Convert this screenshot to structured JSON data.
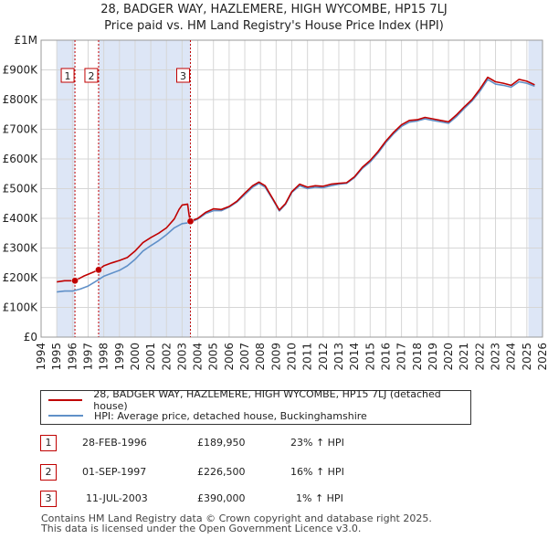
{
  "header": {
    "title_line1": "28, BADGER WAY, HAZLEMERE, HIGH WYCOMBE, HP15 7LJ",
    "title_line2": "Price paid vs. HM Land Registry's House Price Index (HPI)"
  },
  "colors": {
    "price_line": "#c00000",
    "hpi_line": "#6090c8",
    "shade": "#dde6f6",
    "grid": "#d6d6d6",
    "marker_border": "#c00000"
  },
  "chart_data": {
    "type": "line",
    "title": "28, BADGER WAY, HAZLEMERE, HIGH WYCOMBE, HP15 7LJ",
    "subtitle": "Price paid vs. HM Land Registry's House Price Index (HPI)",
    "xlim": [
      1994,
      2026
    ],
    "ylim": [
      0,
      1000000
    ],
    "x_ticks": [
      1994,
      1995,
      1996,
      1997,
      1998,
      1999,
      2000,
      2001,
      2002,
      2003,
      2004,
      2005,
      2006,
      2007,
      2008,
      2009,
      2010,
      2011,
      2012,
      2013,
      2014,
      2015,
      2016,
      2017,
      2018,
      2019,
      2020,
      2021,
      2022,
      2023,
      2024,
      2025,
      2026
    ],
    "y_ticks": [
      {
        "value": 0,
        "label": "£0"
      },
      {
        "value": 100000,
        "label": "£100K"
      },
      {
        "value": 200000,
        "label": "£200K"
      },
      {
        "value": 300000,
        "label": "£300K"
      },
      {
        "value": 400000,
        "label": "£400K"
      },
      {
        "value": 500000,
        "label": "£500K"
      },
      {
        "value": 600000,
        "label": "£600K"
      },
      {
        "value": 700000,
        "label": "£700K"
      },
      {
        "value": 800000,
        "label": "£800K"
      },
      {
        "value": 900000,
        "label": "£900K"
      },
      {
        "value": 1000000,
        "label": "£1M"
      }
    ],
    "grid": true,
    "shaded_ranges": [
      [
        1995.0,
        1996.16
      ],
      [
        1997.67,
        2003.53
      ],
      [
        2025.1,
        2026.0
      ]
    ],
    "series": [
      {
        "name": "28, BADGER WAY, HAZLEMERE, HIGH WYCOMBE, HP15 7LJ (detached house)",
        "color": "#c00000",
        "points": [
          [
            1995.0,
            186000
          ],
          [
            1995.5,
            190000
          ],
          [
            1996.16,
            189950
          ],
          [
            1996.7,
            205000
          ],
          [
            1997.3,
            218000
          ],
          [
            1997.67,
            226500
          ],
          [
            1998.0,
            240000
          ],
          [
            1998.5,
            250000
          ],
          [
            1999.0,
            258000
          ],
          [
            1999.5,
            268000
          ],
          [
            2000.0,
            290000
          ],
          [
            2000.5,
            318000
          ],
          [
            2001.0,
            335000
          ],
          [
            2001.5,
            350000
          ],
          [
            2002.0,
            368000
          ],
          [
            2002.5,
            398000
          ],
          [
            2002.8,
            430000
          ],
          [
            2003.0,
            445000
          ],
          [
            2003.35,
            448000
          ],
          [
            2003.45,
            410000
          ],
          [
            2003.53,
            390000
          ],
          [
            2004.0,
            400000
          ],
          [
            2004.5,
            420000
          ],
          [
            2005.0,
            432000
          ],
          [
            2005.5,
            430000
          ],
          [
            2006.0,
            440000
          ],
          [
            2006.5,
            458000
          ],
          [
            2007.0,
            485000
          ],
          [
            2007.5,
            510000
          ],
          [
            2007.9,
            522000
          ],
          [
            2008.3,
            510000
          ],
          [
            2008.8,
            465000
          ],
          [
            2009.2,
            428000
          ],
          [
            2009.6,
            450000
          ],
          [
            2010.0,
            490000
          ],
          [
            2010.5,
            515000
          ],
          [
            2011.0,
            505000
          ],
          [
            2011.5,
            510000
          ],
          [
            2012.0,
            508000
          ],
          [
            2012.5,
            515000
          ],
          [
            2013.0,
            518000
          ],
          [
            2013.5,
            520000
          ],
          [
            2014.0,
            540000
          ],
          [
            2014.5,
            572000
          ],
          [
            2015.0,
            595000
          ],
          [
            2015.5,
            625000
          ],
          [
            2016.0,
            660000
          ],
          [
            2016.5,
            690000
          ],
          [
            2017.0,
            715000
          ],
          [
            2017.5,
            730000
          ],
          [
            2018.0,
            732000
          ],
          [
            2018.5,
            740000
          ],
          [
            2019.0,
            735000
          ],
          [
            2019.5,
            730000
          ],
          [
            2020.0,
            725000
          ],
          [
            2020.5,
            748000
          ],
          [
            2021.0,
            775000
          ],
          [
            2021.5,
            800000
          ],
          [
            2022.0,
            835000
          ],
          [
            2022.5,
            875000
          ],
          [
            2023.0,
            860000
          ],
          [
            2023.5,
            855000
          ],
          [
            2024.0,
            848000
          ],
          [
            2024.5,
            868000
          ],
          [
            2025.0,
            862000
          ],
          [
            2025.5,
            850000
          ]
        ]
      },
      {
        "name": "HPI: Average price, detached house, Buckinghamshire",
        "color": "#6090c8",
        "points": [
          [
            1995.0,
            152000
          ],
          [
            1995.5,
            155000
          ],
          [
            1996.0,
            155000
          ],
          [
            1996.5,
            162000
          ],
          [
            1997.0,
            172000
          ],
          [
            1997.5,
            188000
          ],
          [
            1998.0,
            205000
          ],
          [
            1998.5,
            215000
          ],
          [
            1999.0,
            225000
          ],
          [
            1999.5,
            240000
          ],
          [
            2000.0,
            262000
          ],
          [
            2000.5,
            290000
          ],
          [
            2001.0,
            308000
          ],
          [
            2001.5,
            325000
          ],
          [
            2002.0,
            345000
          ],
          [
            2002.5,
            368000
          ],
          [
            2003.0,
            382000
          ],
          [
            2003.53,
            386000
          ],
          [
            2004.0,
            398000
          ],
          [
            2004.5,
            416000
          ],
          [
            2005.0,
            426000
          ],
          [
            2005.5,
            426000
          ],
          [
            2006.0,
            438000
          ],
          [
            2006.5,
            455000
          ],
          [
            2007.0,
            480000
          ],
          [
            2007.5,
            505000
          ],
          [
            2007.9,
            518000
          ],
          [
            2008.3,
            505000
          ],
          [
            2008.8,
            462000
          ],
          [
            2009.2,
            425000
          ],
          [
            2009.6,
            447000
          ],
          [
            2010.0,
            487000
          ],
          [
            2010.5,
            510000
          ],
          [
            2011.0,
            500000
          ],
          [
            2011.5,
            505000
          ],
          [
            2012.0,
            503000
          ],
          [
            2012.5,
            510000
          ],
          [
            2013.0,
            515000
          ],
          [
            2013.5,
            518000
          ],
          [
            2014.0,
            537000
          ],
          [
            2014.5,
            568000
          ],
          [
            2015.0,
            590000
          ],
          [
            2015.5,
            620000
          ],
          [
            2016.0,
            655000
          ],
          [
            2016.5,
            685000
          ],
          [
            2017.0,
            710000
          ],
          [
            2017.5,
            724000
          ],
          [
            2018.0,
            728000
          ],
          [
            2018.5,
            735000
          ],
          [
            2019.0,
            730000
          ],
          [
            2019.5,
            725000
          ],
          [
            2020.0,
            720000
          ],
          [
            2020.5,
            742000
          ],
          [
            2021.0,
            770000
          ],
          [
            2021.5,
            795000
          ],
          [
            2022.0,
            828000
          ],
          [
            2022.5,
            868000
          ],
          [
            2023.0,
            852000
          ],
          [
            2023.5,
            848000
          ],
          [
            2024.0,
            842000
          ],
          [
            2024.5,
            860000
          ],
          [
            2025.0,
            855000
          ],
          [
            2025.5,
            845000
          ]
        ]
      }
    ],
    "markers": [
      {
        "label": "1",
        "x": 1996.16,
        "y": 189950
      },
      {
        "label": "2",
        "x": 1997.67,
        "y": 226500
      },
      {
        "label": "3",
        "x": 2003.53,
        "y": 390000
      }
    ],
    "marker_label_value": 880000
  },
  "legend": {
    "price_label": "28, BADGER WAY, HAZLEMERE, HIGH WYCOMBE, HP15 7LJ (detached house)",
    "hpi_label": "HPI: Average price, detached house, Buckinghamshire"
  },
  "transactions": [
    {
      "num": "1",
      "date": "28-FEB-1996",
      "price": "£189,950",
      "hpi": "23% ↑ HPI"
    },
    {
      "num": "2",
      "date": "01-SEP-1997",
      "price": "£226,500",
      "hpi": "16% ↑ HPI"
    },
    {
      "num": "3",
      "date": "11-JUL-2003",
      "price": "£390,000",
      "hpi": "1% ↑ HPI"
    }
  ],
  "footer": {
    "line1": "Contains HM Land Registry data © Crown copyright and database right 2025.",
    "line2": "This data is licensed under the Open Government Licence v3.0."
  }
}
